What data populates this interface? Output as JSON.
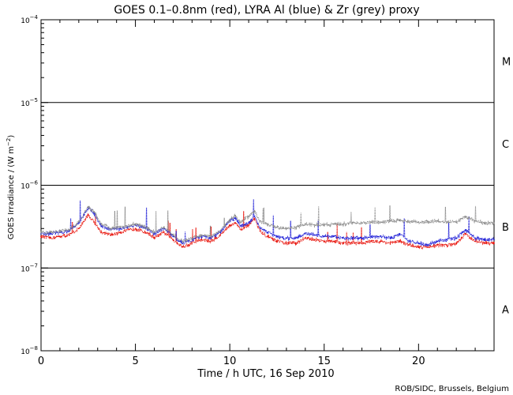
{
  "chart_data": {
    "type": "line",
    "title": "GOES 0.1–0.8nm (red), LYRA Al (blue) & Zr (grey) proxy",
    "xlabel": "Time / h UTC, 16 Sep 2010",
    "ylabel_main": "GOES Irradiance / (W m",
    "ylabel_sup": "−2",
    "ylabel_close": ")",
    "xlim": [
      0,
      24
    ],
    "ylim_exponents": [
      -8,
      -4
    ],
    "y_scale": "log",
    "x_ticks": [
      0,
      5,
      10,
      15,
      20
    ],
    "x_tick_labels": [
      "0",
      "5",
      "10",
      "15",
      "20"
    ],
    "y_tick_base": "10",
    "y_tick_exponents": [
      "−8",
      "−7",
      "−6",
      "−5",
      "−4"
    ],
    "flare_classes": [
      "A",
      "B",
      "C",
      "M"
    ],
    "flare_class_centers_log": [
      -7.5,
      -6.5,
      -5.5,
      -4.5
    ],
    "threshold_lines_log": [
      -7,
      -6,
      -5
    ],
    "credit": "ROB/SIDC, Brussels, Belgium",
    "series": [
      {
        "name": "GOES 0.1-0.8nm",
        "color": "#e8140c",
        "x": [
          0,
          0.5,
          1,
          1.5,
          2,
          2.5,
          2.8,
          3.2,
          3.7,
          4.2,
          5,
          5.7,
          6,
          6.5,
          7,
          7.5,
          8,
          8.5,
          9,
          9.5,
          10,
          10.3,
          10.6,
          11,
          11.3,
          11.6,
          12,
          12.5,
          13,
          13.5,
          14,
          14.5,
          15,
          15.5,
          16,
          16.5,
          17,
          17.5,
          18,
          18.5,
          19,
          19.5,
          20,
          20.5,
          21,
          21.5,
          22,
          22.5,
          23,
          23.5,
          24
        ],
        "values": [
          2.4e-07,
          2.3e-07,
          2.4e-07,
          2.5e-07,
          3e-07,
          4.4e-07,
          3.6e-07,
          2.7e-07,
          2.5e-07,
          2.7e-07,
          3e-07,
          2.6e-07,
          2.3e-07,
          2.7e-07,
          2.2e-07,
          1.8e-07,
          2e-07,
          2.2e-07,
          2.1e-07,
          2.5e-07,
          3.3e-07,
          3.5e-07,
          2.9e-07,
          3.3e-07,
          3.9e-07,
          2.8e-07,
          2.4e-07,
          2.1e-07,
          2e-07,
          2e-07,
          2.3e-07,
          2.2e-07,
          2.1e-07,
          2.1e-07,
          2e-07,
          2e-07,
          2e-07,
          2.1e-07,
          2.1e-07,
          2e-07,
          2.1e-07,
          1.9e-07,
          1.8e-07,
          1.8e-07,
          1.9e-07,
          1.9e-07,
          2e-07,
          2.6e-07,
          2.1e-07,
          2e-07,
          2e-07
        ]
      },
      {
        "name": "LYRA Al proxy",
        "color": "#1c1cd6",
        "x": [
          0,
          0.5,
          1,
          1.5,
          2,
          2.5,
          2.8,
          3.2,
          3.7,
          4.2,
          5,
          5.7,
          6,
          6.5,
          7,
          7.5,
          8,
          8.5,
          9,
          9.5,
          10,
          10.3,
          10.6,
          11,
          11.3,
          11.6,
          12,
          12.5,
          13,
          13.5,
          14,
          14.5,
          15,
          15.5,
          16,
          16.5,
          17,
          17.5,
          18,
          18.5,
          19,
          19.5,
          20,
          20.5,
          21,
          21.5,
          22,
          22.5,
          23,
          23.5,
          24
        ],
        "values": [
          2.6e-07,
          2.6e-07,
          2.7e-07,
          2.8e-07,
          3.5e-07,
          5.3e-07,
          4.6e-07,
          3.2e-07,
          2.9e-07,
          3e-07,
          3.3e-07,
          2.9e-07,
          2.6e-07,
          3e-07,
          2.4e-07,
          2e-07,
          2.2e-07,
          2.4e-07,
          2.3e-07,
          2.7e-07,
          3.7e-07,
          4e-07,
          3.2e-07,
          3.5e-07,
          4.2e-07,
          3.1e-07,
          2.7e-07,
          2.4e-07,
          2.3e-07,
          2.3e-07,
          2.6e-07,
          2.5e-07,
          2.4e-07,
          2.4e-07,
          2.3e-07,
          2.3e-07,
          2.3e-07,
          2.4e-07,
          2.4e-07,
          2.3e-07,
          2.6e-07,
          2.1e-07,
          2e-07,
          1.9e-07,
          2.1e-07,
          2.2e-07,
          2.3e-07,
          2.9e-07,
          2.3e-07,
          2.2e-07,
          2.2e-07
        ]
      },
      {
        "name": "LYRA Zr proxy",
        "color": "#8c8c8c",
        "x": [
          0,
          0.5,
          1,
          1.5,
          2,
          2.5,
          2.8,
          3.2,
          3.7,
          4.2,
          5,
          5.7,
          6,
          6.5,
          7,
          7.5,
          8,
          8.5,
          9,
          9.5,
          10,
          10.3,
          10.6,
          11,
          11.3,
          11.6,
          12,
          12.5,
          13,
          13.5,
          14,
          14.5,
          15,
          15.5,
          16,
          16.5,
          17,
          17.5,
          18,
          18.5,
          19,
          19.5,
          20,
          20.5,
          21,
          21.5,
          22,
          22.5,
          23,
          23.5,
          24
        ],
        "values": [
          2.7e-07,
          2.7e-07,
          2.8e-07,
          2.9e-07,
          3.6e-07,
          5.5e-07,
          4.8e-07,
          3.4e-07,
          3e-07,
          3.1e-07,
          3.4e-07,
          3e-07,
          2.7e-07,
          3.1e-07,
          2.5e-07,
          2.1e-07,
          2.3e-07,
          2.5e-07,
          2.4e-07,
          2.8e-07,
          3.8e-07,
          4.3e-07,
          3.6e-07,
          4.2e-07,
          4.9e-07,
          3.7e-07,
          3.3e-07,
          3.1e-07,
          3e-07,
          3.1e-07,
          3.4e-07,
          3.3e-07,
          3.3e-07,
          3.4e-07,
          3.4e-07,
          3.5e-07,
          3.5e-07,
          3.6e-07,
          3.6e-07,
          3.7e-07,
          3.8e-07,
          3.6e-07,
          3.6e-07,
          3.6e-07,
          3.7e-07,
          3.6e-07,
          3.6e-07,
          4.2e-07,
          3.7e-07,
          3.5e-07,
          3.5e-07
        ]
      }
    ]
  }
}
